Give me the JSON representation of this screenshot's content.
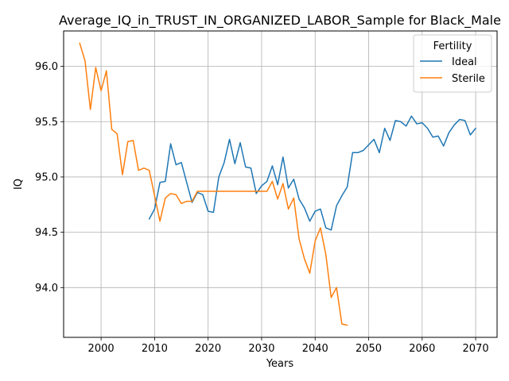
{
  "chart_data": {
    "type": "line",
    "title": "Average_IQ_in_TRUST_IN_ORGANIZED_LABOR_Sample for Black_Male",
    "xlabel": "Years",
    "ylabel": "IQ",
    "xlim": [
      1993,
      2074
    ],
    "ylim": [
      93.55,
      96.32
    ],
    "xticks": [
      2000,
      2010,
      2020,
      2030,
      2040,
      2050,
      2060,
      2070
    ],
    "yticks": [
      94.0,
      94.5,
      95.0,
      95.5,
      96.0
    ],
    "grid": true,
    "legend": {
      "title": "Fertility",
      "placement": "top-right"
    },
    "series": [
      {
        "name": "Ideal",
        "color": "#1f77b4",
        "x": [
          2009,
          2010,
          2011,
          2012,
          2013,
          2014,
          2015,
          2016,
          2017,
          2018,
          2019,
          2020,
          2021,
          2022,
          2023,
          2024,
          2025,
          2026,
          2027,
          2028,
          2029,
          2030,
          2031,
          2032,
          2033,
          2034,
          2035,
          2036,
          2037,
          2038,
          2039,
          2040,
          2041,
          2042,
          2043,
          2044,
          2045,
          2046,
          2047,
          2048,
          2049,
          2050,
          2051,
          2052,
          2053,
          2054,
          2055,
          2056,
          2057,
          2058,
          2059,
          2060,
          2061,
          2062,
          2063,
          2064,
          2065,
          2066,
          2067,
          2068,
          2069,
          2070
        ],
        "values": [
          94.62,
          94.71,
          94.95,
          94.96,
          95.3,
          95.11,
          95.13,
          94.95,
          94.77,
          94.86,
          94.84,
          94.69,
          94.68,
          95.0,
          95.13,
          95.34,
          95.12,
          95.31,
          95.09,
          95.08,
          94.85,
          94.92,
          94.96,
          95.1,
          94.93,
          95.18,
          94.9,
          94.98,
          94.8,
          94.72,
          94.6,
          94.69,
          94.71,
          94.54,
          94.52,
          94.74,
          94.83,
          94.91,
          95.22,
          95.22,
          95.24,
          95.29,
          95.34,
          95.22,
          95.44,
          95.33,
          95.51,
          95.5,
          95.46,
          95.55,
          95.48,
          95.49,
          95.44,
          95.36,
          95.37,
          95.28,
          95.4,
          95.47,
          95.52,
          95.51,
          95.38,
          95.44
        ]
      },
      {
        "name": "Sterile",
        "color": "#ff7f0e",
        "x": [
          1996,
          1997,
          1998,
          1999,
          2000,
          2001,
          2002,
          2003,
          2004,
          2005,
          2006,
          2007,
          2008,
          2009,
          2010,
          2011,
          2012,
          2013,
          2014,
          2015,
          2016,
          2017,
          2018,
          2019,
          2020,
          2021,
          2022,
          2023,
          2024,
          2025,
          2026,
          2027,
          2028,
          2029,
          2030,
          2031,
          2032,
          2033,
          2034,
          2035,
          2036,
          2037,
          2038,
          2039,
          2040,
          2041,
          2042,
          2043,
          2044,
          2045,
          2046
        ],
        "values": [
          96.21,
          96.05,
          95.61,
          95.99,
          95.78,
          95.96,
          95.43,
          95.39,
          95.02,
          95.32,
          95.33,
          95.06,
          95.08,
          95.06,
          94.83,
          94.6,
          94.81,
          94.85,
          94.84,
          94.76,
          94.78,
          94.78,
          94.87,
          94.87,
          94.87,
          94.87,
          94.87,
          94.87,
          94.87,
          94.87,
          94.87,
          94.87,
          94.87,
          94.87,
          94.87,
          94.87,
          94.96,
          94.8,
          94.94,
          94.71,
          94.81,
          94.44,
          94.26,
          94.13,
          94.42,
          94.54,
          94.3,
          93.91,
          94.0,
          93.67,
          93.66
        ]
      }
    ]
  }
}
